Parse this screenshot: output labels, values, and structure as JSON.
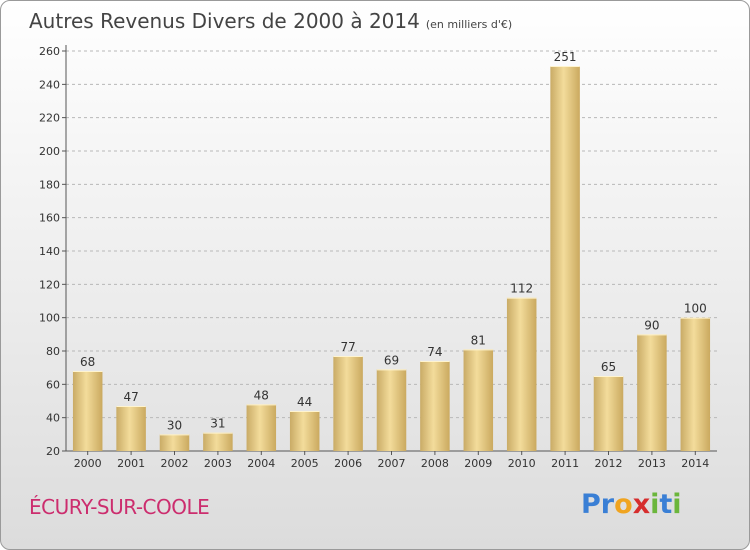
{
  "title": "Autres Revenus Divers de 2000 à 2014",
  "unit": "(en milliers d'€)",
  "commune": "ÉCURY-SUR-COOLE",
  "logo": {
    "letters": [
      {
        "char": "P",
        "color": "#3a7fd5"
      },
      {
        "char": "r",
        "color": "#3a7fd5"
      },
      {
        "char": "o",
        "color": "#f0a420"
      },
      {
        "char": "x",
        "color": "#d62d2d"
      },
      {
        "char": "i",
        "color": "#6bb63c"
      },
      {
        "char": "t",
        "color": "#3a7fd5"
      },
      {
        "char": "i",
        "color": "#6bb63c"
      }
    ]
  },
  "chart_data": {
    "type": "bar",
    "categories": [
      "2000",
      "2001",
      "2002",
      "2003",
      "2004",
      "2005",
      "2006",
      "2007",
      "2008",
      "2009",
      "2010",
      "2011",
      "2012",
      "2013",
      "2014"
    ],
    "values": [
      68,
      47,
      30,
      31,
      48,
      44,
      77,
      69,
      74,
      81,
      112,
      251,
      65,
      90,
      100
    ],
    "title": "Autres Revenus Divers de 2000 à 2014",
    "ylim": [
      20,
      260
    ],
    "yticks": [
      20,
      40,
      60,
      80,
      100,
      120,
      140,
      160,
      180,
      200,
      220,
      240,
      260
    ],
    "grid": true,
    "bar_color": "#e8cf8a"
  }
}
